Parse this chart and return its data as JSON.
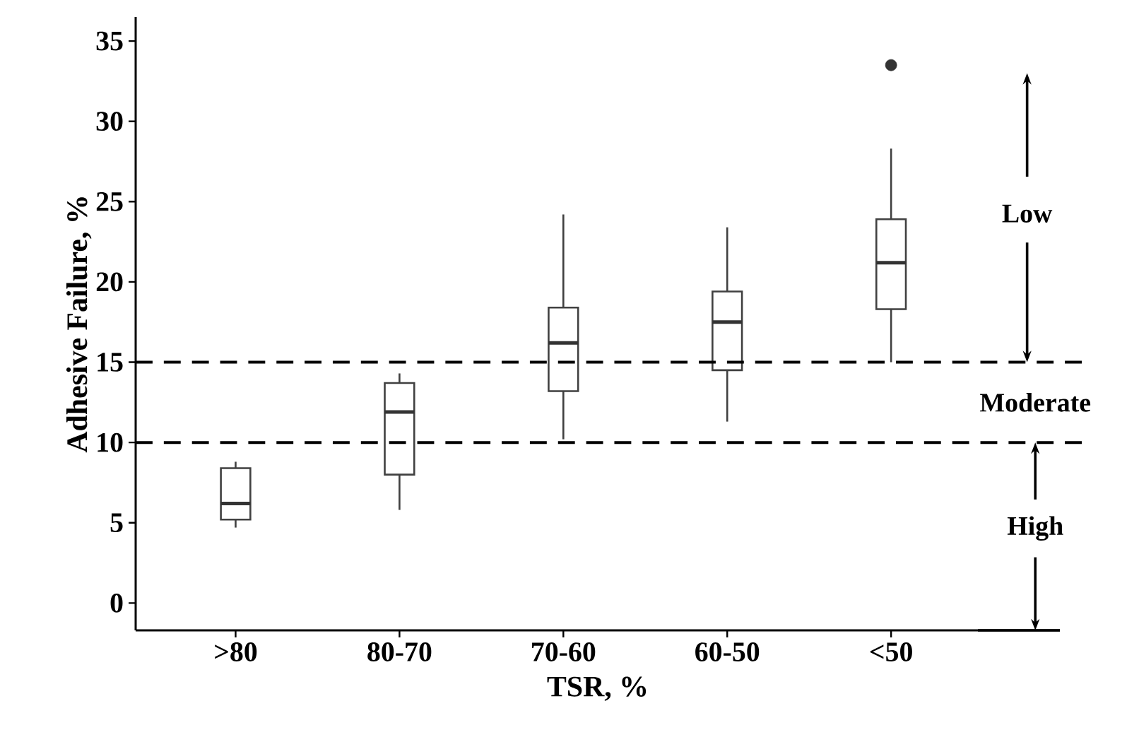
{
  "chart_data": {
    "type": "box",
    "xlabel": "TSR, %",
    "ylabel": "Adhesive Failure, %",
    "categories": [
      ">80",
      "80-70",
      "70-60",
      "60-50",
      "<50"
    ],
    "color": "#ffffff",
    "boxes": [
      {
        "low": 4.7,
        "q1": 5.2,
        "median": 6.2,
        "q3": 8.4,
        "high": 8.8
      },
      {
        "low": 5.8,
        "q1": 8.0,
        "median": 11.9,
        "q3": 13.7,
        "high": 14.3
      },
      {
        "low": 10.2,
        "q1": 13.2,
        "median": 16.2,
        "q3": 18.4,
        "high": 24.2
      },
      {
        "low": 11.3,
        "q1": 14.5,
        "median": 17.5,
        "q3": 19.4,
        "high": 23.4
      },
      {
        "low": 15.0,
        "q1": 18.3,
        "median": 21.2,
        "q3": 23.9,
        "high": 28.3,
        "outliers": [
          33.5
        ]
      }
    ],
    "ylim": [
      -1.7,
      36.5
    ],
    "yticks": [
      0,
      5,
      10,
      15,
      20,
      25,
      30,
      35
    ],
    "ref_lines": [
      {
        "axis": "y",
        "value": 15,
        "line_style": "dashed"
      },
      {
        "axis": "y",
        "value": 10,
        "line_style": "dashed"
      }
    ],
    "annotations": [
      {
        "text": "Low",
        "y": 15
      },
      "Moderate",
      {
        "text": "High",
        "y": 10
      }
    ]
  }
}
